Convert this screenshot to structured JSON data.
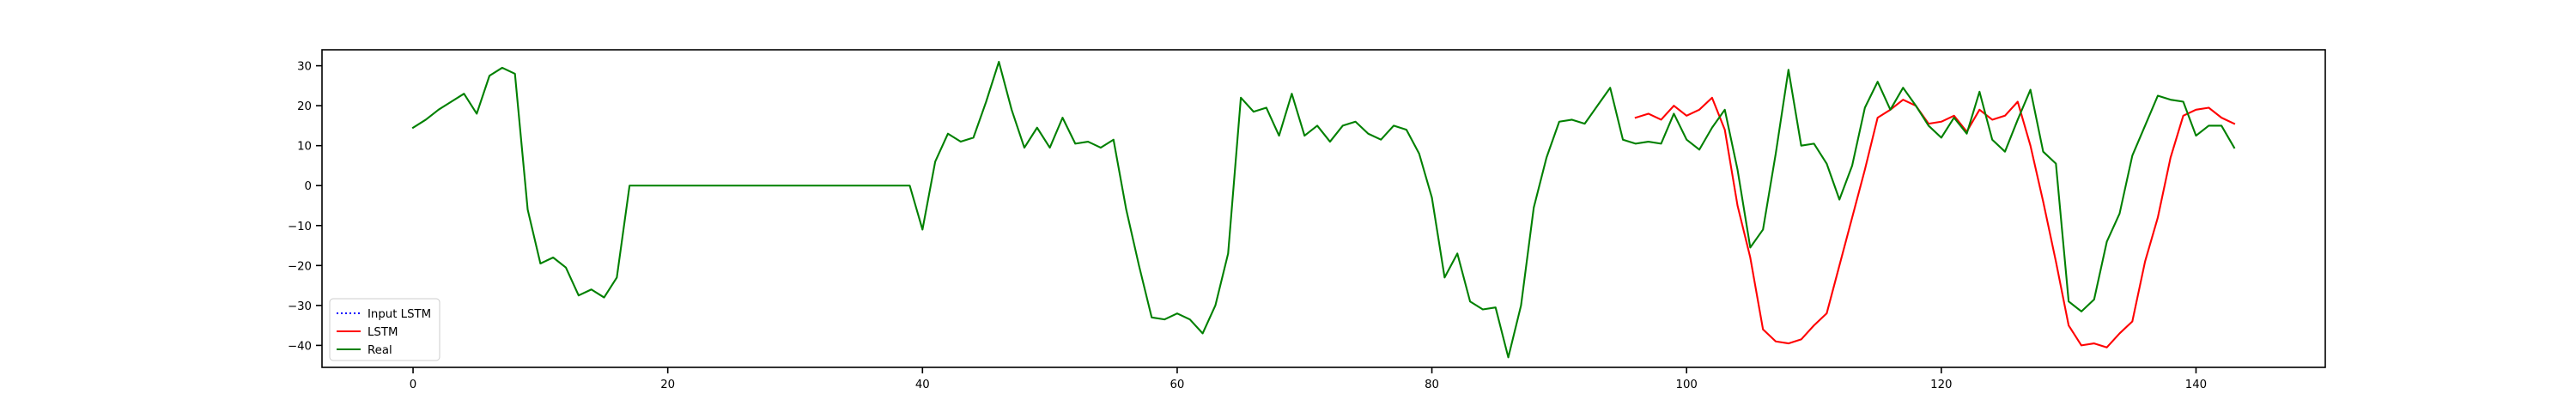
{
  "chart_data": {
    "type": "line",
    "title": "",
    "xlabel": "",
    "ylabel": "",
    "xlim": [
      -7.15,
      150.15
    ],
    "ylim": [
      -45.5,
      34.0
    ],
    "x_ticks": [
      0,
      20,
      40,
      60,
      80,
      100,
      120,
      140
    ],
    "y_ticks": [
      30,
      20,
      10,
      0,
      -10,
      -20,
      -30,
      -40
    ],
    "grid": false,
    "legend_position": "lower-left",
    "series": [
      {
        "name": "Input LSTM",
        "color": "#0000ff",
        "style": "dotted",
        "x": [],
        "y": []
      },
      {
        "name": "LSTM",
        "color": "#ff0000",
        "style": "solid",
        "x_start": 96,
        "y": [
          17,
          18,
          16.5,
          20,
          17.5,
          19,
          22,
          14,
          -5,
          -18,
          -36,
          -39,
          -39.5,
          -38.5,
          -35,
          -32,
          -20,
          -8,
          4,
          17,
          19,
          21.5,
          20,
          15.5,
          16,
          17.5,
          13.5,
          19,
          16.5,
          17.5,
          21,
          10,
          -4,
          -19,
          -35,
          -40,
          -39.5,
          -40.5,
          -37,
          -34,
          -19,
          -8,
          7,
          17.5,
          19,
          19.5,
          17,
          15.5
        ]
      },
      {
        "name": "Real",
        "color": "#008000",
        "style": "solid",
        "x_start": 0,
        "y": [
          14.5,
          16.5,
          19,
          21,
          23,
          18,
          27.5,
          29.5,
          28,
          -6,
          -19.5,
          -18,
          -20.5,
          -27.5,
          -26,
          -28,
          -23,
          0,
          0,
          0,
          0,
          0,
          0,
          0,
          0,
          0,
          0,
          0,
          0,
          0,
          0,
          0,
          0,
          0,
          0,
          0,
          0,
          0,
          0,
          0,
          -11,
          6,
          13,
          11,
          12,
          21,
          31,
          19,
          9.5,
          14.5,
          9.5,
          17,
          10.5,
          11,
          9.5,
          11.5,
          -6,
          -20,
          -33,
          -33.5,
          -32,
          -33.5,
          -37,
          -30,
          -17,
          22,
          18.5,
          19.5,
          12.5,
          23,
          12.5,
          15,
          11,
          15,
          16,
          13,
          11.5,
          15,
          14,
          8,
          -3,
          -23,
          -17,
          -29,
          -31,
          -30.5,
          -43,
          -30,
          -5.5,
          7,
          16,
          16.5,
          15.5,
          20,
          24.5,
          11.5,
          10.5,
          11,
          10.5,
          18,
          11.5,
          9,
          14.5,
          19,
          4,
          -15.5,
          -11,
          8,
          29,
          10,
          10.5,
          5.5,
          -3.5,
          5,
          19.5,
          26,
          19,
          24.5,
          20,
          15,
          12,
          17,
          13,
          23.5,
          11.5,
          8.5,
          16.5,
          24,
          8.5,
          5.5,
          -29,
          -31.5,
          -28.5,
          -14,
          -7,
          7.5,
          15,
          22.5,
          21.5,
          21,
          12.5,
          15,
          15,
          9.5
        ]
      }
    ]
  }
}
